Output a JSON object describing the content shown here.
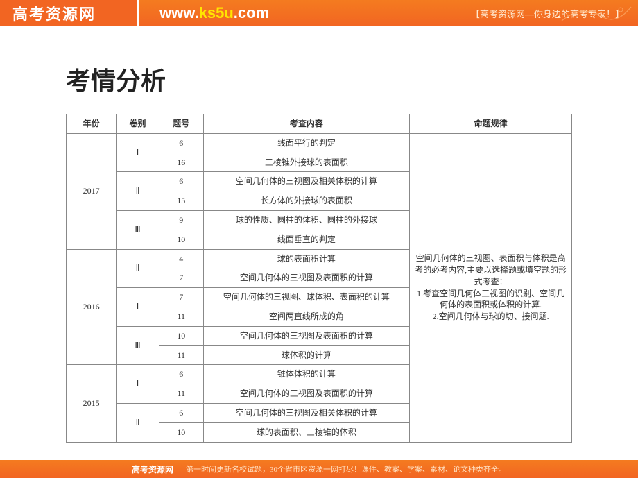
{
  "header": {
    "logo": "高考资源网",
    "url_prefix": "www.",
    "url_highlight": "ks5u",
    "url_suffix": ".com",
    "tagline": "【高考资源网—你身边的高考专家！】"
  },
  "page": {
    "title": "考情分析"
  },
  "table": {
    "headers": {
      "year": "年份",
      "set": "卷别",
      "num": "题号",
      "content": "考查内容",
      "rule": "命题规律"
    },
    "rule_text": "空间几何体的三视图、表面积与体积是高考的必考内容,主要以选择题或填空题的形式考查：\n1.考查空间几何体三视图的识别、空间几何体的表面积或体积的计算.\n2.空间几何体与球的切、接问题.",
    "rows": [
      {
        "year": "2017",
        "set": "Ⅰ",
        "num": "6",
        "content": "线面平行的判定"
      },
      {
        "year": "",
        "set": "",
        "num": "16",
        "content": "三棱锥外接球的表面积"
      },
      {
        "year": "",
        "set": "Ⅱ",
        "num": "6",
        "content": "空间几何体的三视图及相关体积的计算"
      },
      {
        "year": "",
        "set": "",
        "num": "15",
        "content": "长方体的外接球的表面积"
      },
      {
        "year": "",
        "set": "Ⅲ",
        "num": "9",
        "content": "球的性质、圆柱的体积、圆柱的外接球"
      },
      {
        "year": "",
        "set": "",
        "num": "10",
        "content": "线面垂直的判定"
      },
      {
        "year": "2016",
        "set": "Ⅱ",
        "num": "4",
        "content": "球的表面积计算"
      },
      {
        "year": "",
        "set": "",
        "num": "7",
        "content": "空间几何体的三视图及表面积的计算"
      },
      {
        "year": "",
        "set": "Ⅰ",
        "num": "7",
        "content": "空间几何体的三视图、球体积、表面积的计算"
      },
      {
        "year": "",
        "set": "",
        "num": "11",
        "content": "空间两直线所成的角"
      },
      {
        "year": "",
        "set": "Ⅲ",
        "num": "10",
        "content": "空间几何体的三视图及表面积的计算"
      },
      {
        "year": "",
        "set": "",
        "num": "11",
        "content": "球体积的计算"
      },
      {
        "year": "2015",
        "set": "Ⅰ",
        "num": "6",
        "content": "锥体体积的计算"
      },
      {
        "year": "",
        "set": "",
        "num": "11",
        "content": "空间几何体的三视图及表面积的计算"
      },
      {
        "year": "",
        "set": "Ⅱ",
        "num": "6",
        "content": "空间几何体的三视图及相关体积的计算"
      },
      {
        "year": "",
        "set": "",
        "num": "10",
        "content": "球的表面积、三棱锥的体积"
      }
    ],
    "year_spans": {
      "2017": 6,
      "2016": 6,
      "2015": 4
    },
    "set_spans": 2
  },
  "footer": {
    "logo": "高考资源网",
    "text": "第一时间更新名校试题，30个省市区资源一网打尽！课件、教案、学案、素材、论文种类齐全。"
  },
  "styles": {
    "header_bg": "#f26522",
    "body_bg": "#ffffff",
    "title_color": "#222222",
    "border_color": "#888888",
    "text_color": "#333333",
    "highlight_color": "#ffe600"
  }
}
